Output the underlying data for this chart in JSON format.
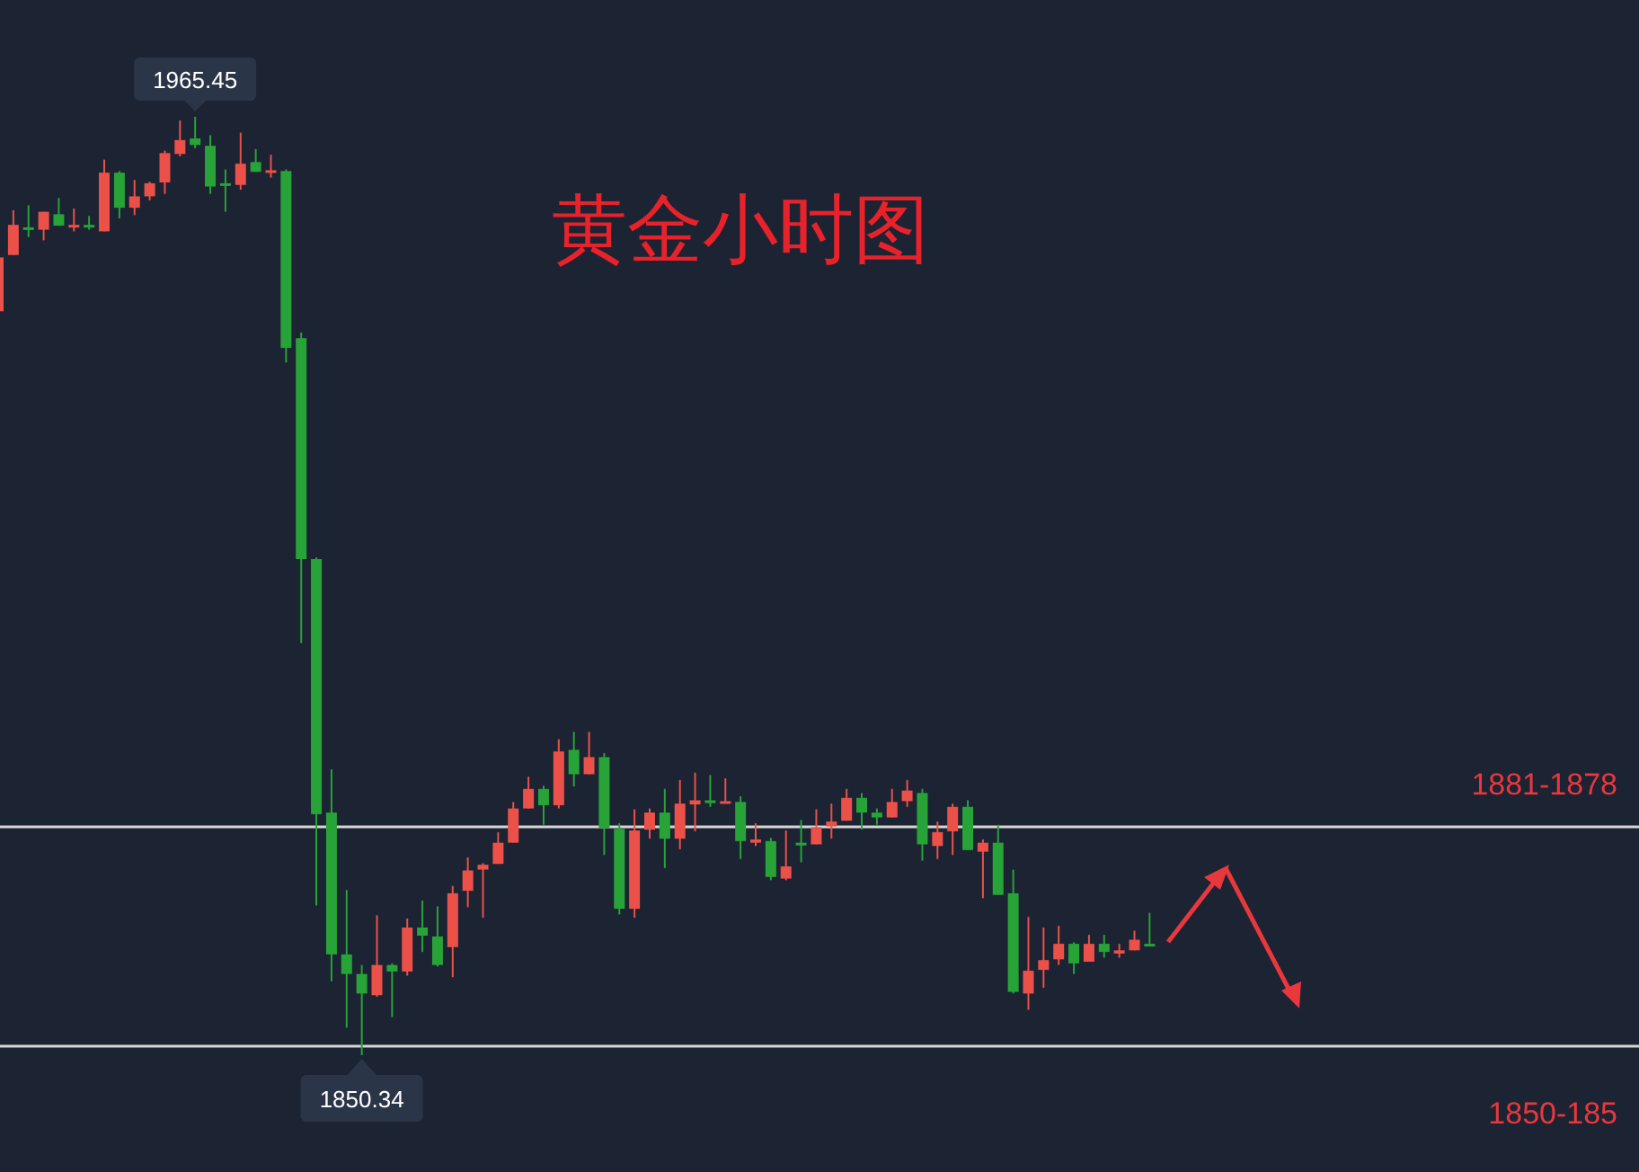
{
  "chart_data": {
    "type": "candlestick",
    "title": "黄金小时图",
    "categories": [
      null,
      null,
      null,
      null,
      null,
      null,
      null,
      null,
      null,
      null,
      null,
      null,
      null,
      null,
      null,
      null,
      null,
      null,
      null,
      null,
      null,
      null,
      null,
      null,
      null,
      null,
      null,
      null,
      null,
      null,
      null,
      null,
      null,
      null,
      null,
      null,
      null,
      null,
      null,
      null,
      null,
      null,
      null,
      null,
      null,
      null,
      null,
      null,
      null,
      null,
      null,
      null,
      null,
      null,
      null,
      null,
      null,
      null,
      null,
      null,
      null,
      null,
      null,
      null,
      null,
      null,
      null,
      null,
      null,
      null,
      null,
      null,
      null,
      null,
      null,
      null,
      null
    ],
    "ohlc": [
      [
        1941.6,
        1948.2,
        1941.6,
        1948.2
      ],
      [
        1948.5,
        1954.0,
        1948.5,
        1952.2
      ],
      [
        1951.9,
        1954.6,
        1950.7,
        1951.7
      ],
      [
        1951.6,
        1953.8,
        1950.3,
        1953.8
      ],
      [
        1953.5,
        1955.5,
        1952.1,
        1952.1
      ],
      [
        1952.1,
        1954.2,
        1951.4,
        1952.2
      ],
      [
        1952.2,
        1953.3,
        1951.6,
        1952.1
      ],
      [
        1951.4,
        1960.2,
        1951.4,
        1958.6
      ],
      [
        1958.6,
        1958.8,
        1953.0,
        1954.3
      ],
      [
        1954.3,
        1957.7,
        1953.4,
        1955.7
      ],
      [
        1955.7,
        1957.5,
        1955.2,
        1957.3
      ],
      [
        1957.4,
        1961.3,
        1956.0,
        1961.0
      ],
      [
        1960.9,
        1965.0,
        1960.6,
        1962.6
      ],
      [
        1962.8,
        1965.45,
        1961.6,
        1962.0
      ],
      [
        1961.9,
        1963.2,
        1956.0,
        1956.9
      ],
      [
        1957.3,
        1959.0,
        1953.8,
        1957.2
      ],
      [
        1957.1,
        1963.5,
        1956.5,
        1959.7
      ],
      [
        1959.9,
        1961.5,
        1958.7,
        1958.7
      ],
      [
        1958.7,
        1960.8,
        1958.0,
        1958.9
      ],
      [
        1958.8,
        1959.0,
        1935.3,
        1937.1
      ],
      [
        1938.3,
        1939.0,
        1900.9,
        1911.2
      ],
      [
        1911.2,
        1911.4,
        1868.7,
        1879.9
      ],
      [
        1880.1,
        1885.4,
        1859.4,
        1862.7
      ],
      [
        1862.7,
        1870.6,
        1853.7,
        1860.3
      ],
      [
        1860.3,
        1861.4,
        1850.34,
        1857.9
      ],
      [
        1857.7,
        1867.5,
        1857.5,
        1861.4
      ],
      [
        1861.4,
        1861.6,
        1855.0,
        1860.6
      ],
      [
        1860.6,
        1867.1,
        1860.1,
        1866.0
      ],
      [
        1866.0,
        1869.3,
        1863.0,
        1865.0
      ],
      [
        1864.9,
        1868.6,
        1861.2,
        1861.4
      ],
      [
        1863.6,
        1871.1,
        1859.9,
        1870.2
      ],
      [
        1870.5,
        1874.6,
        1868.5,
        1873.0
      ],
      [
        1873.1,
        1873.9,
        1867.2,
        1873.7
      ],
      [
        1873.8,
        1877.7,
        1873.8,
        1876.4
      ],
      [
        1876.4,
        1881.4,
        1876.4,
        1880.6
      ],
      [
        1880.6,
        1884.5,
        1880.6,
        1883.0
      ],
      [
        1883.0,
        1883.4,
        1878.6,
        1881.0
      ],
      [
        1881.0,
        1889.1,
        1880.6,
        1887.6
      ],
      [
        1887.8,
        1890.0,
        1883.3,
        1884.8
      ],
      [
        1884.8,
        1890.0,
        1884.8,
        1886.9
      ],
      [
        1886.9,
        1887.4,
        1874.9,
        1878.2
      ],
      [
        1878.1,
        1878.8,
        1867.6,
        1868.3
      ],
      [
        1868.3,
        1880.5,
        1867.2,
        1877.9
      ],
      [
        1878.0,
        1880.6,
        1876.9,
        1880.1
      ],
      [
        1880.1,
        1883.0,
        1873.3,
        1876.9
      ],
      [
        1876.9,
        1884.1,
        1875.6,
        1881.2
      ],
      [
        1881.1,
        1885.0,
        1877.8,
        1881.6
      ],
      [
        1881.6,
        1884.7,
        1880.8,
        1881.3
      ],
      [
        1881.3,
        1884.3,
        1881.3,
        1881.5
      ],
      [
        1881.4,
        1882.1,
        1874.4,
        1876.6
      ],
      [
        1876.4,
        1878.8,
        1876.0,
        1876.8
      ],
      [
        1876.6,
        1877.0,
        1871.8,
        1872.2
      ],
      [
        1872.0,
        1877.9,
        1871.8,
        1873.5
      ],
      [
        1876.4,
        1879.2,
        1874.0,
        1876.2
      ],
      [
        1876.2,
        1880.5,
        1876.2,
        1878.3
      ],
      [
        1878.4,
        1881.2,
        1876.9,
        1879.0
      ],
      [
        1879.1,
        1883.0,
        1879.1,
        1881.9
      ],
      [
        1881.9,
        1882.5,
        1878.0,
        1880.1
      ],
      [
        1880.1,
        1880.6,
        1878.6,
        1879.5
      ],
      [
        1879.5,
        1883.0,
        1879.5,
        1881.4
      ],
      [
        1881.5,
        1884.1,
        1880.8,
        1882.8
      ],
      [
        1882.5,
        1883.0,
        1874.2,
        1876.2
      ],
      [
        1876.0,
        1879.0,
        1874.4,
        1877.7
      ],
      [
        1877.8,
        1881.2,
        1874.9,
        1880.8
      ],
      [
        1880.8,
        1881.6,
        1875.5,
        1875.5
      ],
      [
        1875.3,
        1876.8,
        1869.6,
        1876.4
      ],
      [
        1876.4,
        1878.6,
        1870.0,
        1870.0
      ],
      [
        1870.2,
        1873.1,
        1857.9,
        1858.1
      ],
      [
        1857.9,
        1867.3,
        1855.9,
        1860.7
      ],
      [
        1860.8,
        1866.0,
        1858.6,
        1862.0
      ],
      [
        1862.1,
        1866.2,
        1861.4,
        1864.0
      ],
      [
        1864.0,
        1864.2,
        1860.3,
        1861.6
      ],
      [
        1861.8,
        1865.1,
        1861.8,
        1864.0
      ],
      [
        1864.0,
        1865.1,
        1862.3,
        1863.0
      ],
      [
        1862.8,
        1864.0,
        1862.3,
        1863.2
      ],
      [
        1863.2,
        1865.6,
        1863.2,
        1864.5
      ],
      [
        1864.0,
        1867.8,
        1863.7,
        1863.7
      ]
    ],
    "colors": [
      "#eb5149",
      "#eb5149",
      "#27a338",
      "#eb5149",
      "#27a338",
      "#eb5149",
      "#27a338",
      "#eb5149",
      "#27a338",
      "#eb5149",
      "#eb5149",
      "#eb5149",
      "#eb5149",
      "#27a338",
      "#27a338",
      "#27a338",
      "#eb5149",
      "#27a338",
      "#eb5149",
      "#27a338",
      "#27a338",
      "#27a338",
      "#27a338",
      "#27a338",
      "#27a338",
      "#eb5149",
      "#27a338",
      "#eb5149",
      "#27a338",
      "#27a338",
      "#eb5149",
      "#eb5149",
      "#eb5149",
      "#eb5149",
      "#eb5149",
      "#eb5149",
      "#27a338",
      "#eb5149",
      "#27a338",
      "#eb5149",
      "#27a338",
      "#27a338",
      "#eb5149",
      "#eb5149",
      "#27a338",
      "#eb5149",
      "#eb5149",
      "#27a338",
      "#eb5149",
      "#27a338",
      "#eb5149",
      "#27a338",
      "#eb5149",
      "#27a338",
      "#eb5149",
      "#eb5149",
      "#eb5149",
      "#27a338",
      "#27a338",
      "#eb5149",
      "#eb5149",
      "#27a338",
      "#eb5149",
      "#eb5149",
      "#27a338",
      "#eb5149",
      "#27a338",
      "#27a338",
      "#eb5149",
      "#eb5149",
      "#eb5149",
      "#27a338",
      "#eb5149",
      "#27a338",
      "#eb5149",
      "#eb5149",
      "#27a338"
    ],
    "ref_lines": [
      {
        "axis": "y",
        "value": 1878.35,
        "color": "#d4d4d4"
      },
      {
        "axis": "y",
        "value": 1851.45,
        "color": "#d4d4d4"
      }
    ],
    "annotations": [
      {
        "text": "1965.45",
        "y": 1965.45
      },
      {
        "text": "1850.34",
        "y": 1850.34
      },
      "1881-1878",
      "1850-185"
    ]
  }
}
